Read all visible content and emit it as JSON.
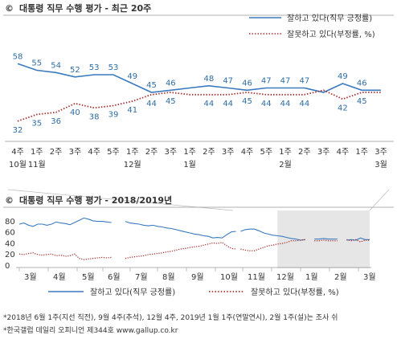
{
  "colors": {
    "approve": "#3a7abf",
    "disapprove": "#a83232",
    "shade": "#e6e6e6"
  },
  "legend": {
    "approve_label": "잘하고 있다(직무 긍정률)",
    "disapprove_label": "잘못하고 있다(부정률, %)"
  },
  "notes": [
    "*2018년 6월 1주(지선 직전), 9월 4주(추석), 12월 4주, 2019년 1월 1주(연말연시), 2월 1주(설)는 조사 쉬",
    "*한국갤럽 데일리 오피니언 제344호 www.gallup.co.kr"
  ],
  "chart_data": [
    {
      "type": "line",
      "title": "대통령 직무 수행 평가 - 최근 20주",
      "title_icon": "©",
      "x": [
        "4주",
        "1주",
        "2주",
        "3주",
        "4주",
        "5주",
        "1주",
        "2주",
        "3주",
        "1주",
        "2주",
        "3주",
        "4주",
        "5주",
        "1주",
        "2주",
        "3주",
        "4주",
        "1주",
        "3주"
      ],
      "month_labels": [
        {
          "index": 0,
          "label": "10월"
        },
        {
          "index": 1,
          "label": "11월"
        },
        {
          "index": 6,
          "label": "12월"
        },
        {
          "index": 9,
          "label": "1월"
        },
        {
          "index": 14,
          "label": "2월"
        },
        {
          "index": 19,
          "label": "3월"
        }
      ],
      "ylim": [
        25,
        65
      ],
      "series": [
        {
          "name": "잘하고 있다(직무 긍정률)",
          "style": "solid",
          "values": [
            58,
            55,
            54,
            52,
            53,
            53,
            49,
            45,
            46,
            47,
            48,
            47,
            46,
            47,
            47,
            47,
            45,
            49,
            46,
            46
          ],
          "labels": [
            "58",
            "55",
            "54",
            "52",
            "53",
            "53",
            "49",
            "45",
            "46",
            "",
            "48",
            "47",
            "46",
            "47",
            "47",
            "47",
            "",
            "49",
            "46",
            ""
          ]
        },
        {
          "name": "잘못하고 있다(부정률, %)",
          "style": "dotted",
          "values": [
            32,
            35,
            36,
            40,
            38,
            39,
            41,
            44,
            45,
            44,
            44,
            44,
            45,
            44,
            44,
            44,
            46,
            42,
            45,
            45
          ],
          "labels": [
            "32",
            "35",
            "36",
            "40",
            "38",
            "39",
            "41",
            "44",
            "45",
            "",
            "44",
            "44",
            "45",
            "44",
            "44",
            "44",
            "",
            "42",
            "45",
            ""
          ]
        }
      ]
    },
    {
      "type": "line",
      "title": "대통령 직무 수행 평가 - 2018/2019년",
      "title_icon": "©",
      "yticks": [
        "80",
        "60",
        "40",
        "20",
        "0"
      ],
      "ylim": [
        0,
        90
      ],
      "month_labels": [
        "3월",
        "4월",
        "5월",
        "6월",
        "7월",
        "8월",
        "9월",
        "10월",
        "11월",
        "12월",
        "1월",
        "2월",
        "3월"
      ],
      "approve_segments": [
        [
          [
            0,
            74
          ],
          [
            1,
            76
          ],
          [
            2,
            72
          ],
          [
            3,
            70
          ],
          [
            4,
            74
          ],
          [
            5,
            74
          ],
          [
            6,
            72
          ],
          [
            7,
            74
          ],
          [
            8,
            78
          ],
          [
            9,
            76
          ],
          [
            10,
            75
          ],
          [
            11,
            73
          ],
          [
            12,
            77
          ],
          [
            13,
            81
          ],
          [
            14,
            85
          ],
          [
            15,
            83
          ],
          [
            16,
            80
          ],
          [
            17,
            79
          ],
          [
            18,
            79
          ],
          [
            19,
            78
          ],
          [
            20,
            77
          ]
        ],
        [
          [
            23,
            79
          ],
          [
            24,
            76
          ],
          [
            25,
            75
          ],
          [
            26,
            74
          ],
          [
            27,
            72
          ],
          [
            28,
            71
          ],
          [
            29,
            72
          ],
          [
            30,
            70
          ],
          [
            31,
            69
          ],
          [
            32,
            67
          ],
          [
            33,
            66
          ],
          [
            34,
            64
          ],
          [
            35,
            62
          ],
          [
            36,
            60
          ],
          [
            37,
            58
          ],
          [
            38,
            56
          ],
          [
            39,
            55
          ],
          [
            40,
            53
          ],
          [
            41,
            52
          ],
          [
            42,
            49
          ],
          [
            43,
            50
          ],
          [
            44,
            49
          ],
          [
            45,
            55
          ],
          [
            46,
            60
          ],
          [
            47,
            61
          ]
        ],
        [
          [
            48,
            61
          ],
          [
            49,
            64
          ],
          [
            50,
            65
          ],
          [
            51,
            65
          ],
          [
            52,
            62
          ],
          [
            53,
            58
          ],
          [
            54,
            56
          ],
          [
            55,
            54
          ],
          [
            56,
            53
          ],
          [
            57,
            52
          ],
          [
            58,
            50
          ],
          [
            59,
            48
          ],
          [
            60,
            47
          ],
          [
            61,
            45
          ],
          [
            62,
            46
          ]
        ],
        [
          [
            64,
            47
          ],
          [
            65,
            47
          ],
          [
            66,
            48
          ],
          [
            67,
            47
          ],
          [
            68,
            47
          ],
          [
            69,
            47
          ]
        ],
        [
          [
            71,
            45
          ],
          [
            72,
            46
          ],
          [
            73,
            45
          ],
          [
            74,
            49
          ],
          [
            75,
            46
          ],
          [
            76,
            46
          ]
        ]
      ],
      "disapprove_segments": [
        [
          [
            0,
            20
          ],
          [
            1,
            19
          ],
          [
            2,
            21
          ],
          [
            3,
            22
          ],
          [
            4,
            19
          ],
          [
            5,
            18
          ],
          [
            6,
            19
          ],
          [
            7,
            20
          ],
          [
            8,
            17
          ],
          [
            9,
            18
          ],
          [
            10,
            16
          ],
          [
            11,
            17
          ],
          [
            12,
            20
          ],
          [
            13,
            12
          ],
          [
            14,
            10
          ],
          [
            15,
            11
          ],
          [
            16,
            12
          ],
          [
            17,
            13
          ],
          [
            18,
            14
          ],
          [
            19,
            13
          ],
          [
            20,
            14
          ]
        ],
        [
          [
            23,
            12
          ],
          [
            24,
            14
          ],
          [
            25,
            15
          ],
          [
            26,
            16
          ],
          [
            27,
            17
          ],
          [
            28,
            19
          ],
          [
            29,
            20
          ],
          [
            30,
            21
          ],
          [
            31,
            22
          ],
          [
            32,
            24
          ],
          [
            33,
            25
          ],
          [
            34,
            27
          ],
          [
            35,
            29
          ],
          [
            36,
            30
          ],
          [
            37,
            32
          ],
          [
            38,
            33
          ],
          [
            39,
            34
          ],
          [
            40,
            36
          ],
          [
            41,
            38
          ],
          [
            42,
            40
          ],
          [
            43,
            39
          ],
          [
            44,
            41
          ],
          [
            45,
            35
          ],
          [
            46,
            30
          ],
          [
            47,
            29
          ]
        ],
        [
          [
            48,
            29
          ],
          [
            49,
            27
          ],
          [
            50,
            26
          ],
          [
            51,
            26
          ],
          [
            52,
            29
          ],
          [
            53,
            32
          ],
          [
            54,
            35
          ],
          [
            55,
            36
          ],
          [
            56,
            38
          ],
          [
            57,
            39
          ],
          [
            58,
            41
          ],
          [
            59,
            44
          ],
          [
            60,
            44
          ],
          [
            61,
            45
          ],
          [
            62,
            46
          ]
        ],
        [
          [
            64,
            44
          ],
          [
            65,
            44
          ],
          [
            66,
            45
          ],
          [
            67,
            44
          ],
          [
            68,
            44
          ],
          [
            69,
            44
          ]
        ],
        [
          [
            71,
            46
          ],
          [
            72,
            44
          ],
          [
            73,
            46
          ],
          [
            74,
            42
          ],
          [
            75,
            45
          ],
          [
            76,
            45
          ]
        ]
      ],
      "x_count": 77,
      "shade_from_index": 56
    }
  ]
}
